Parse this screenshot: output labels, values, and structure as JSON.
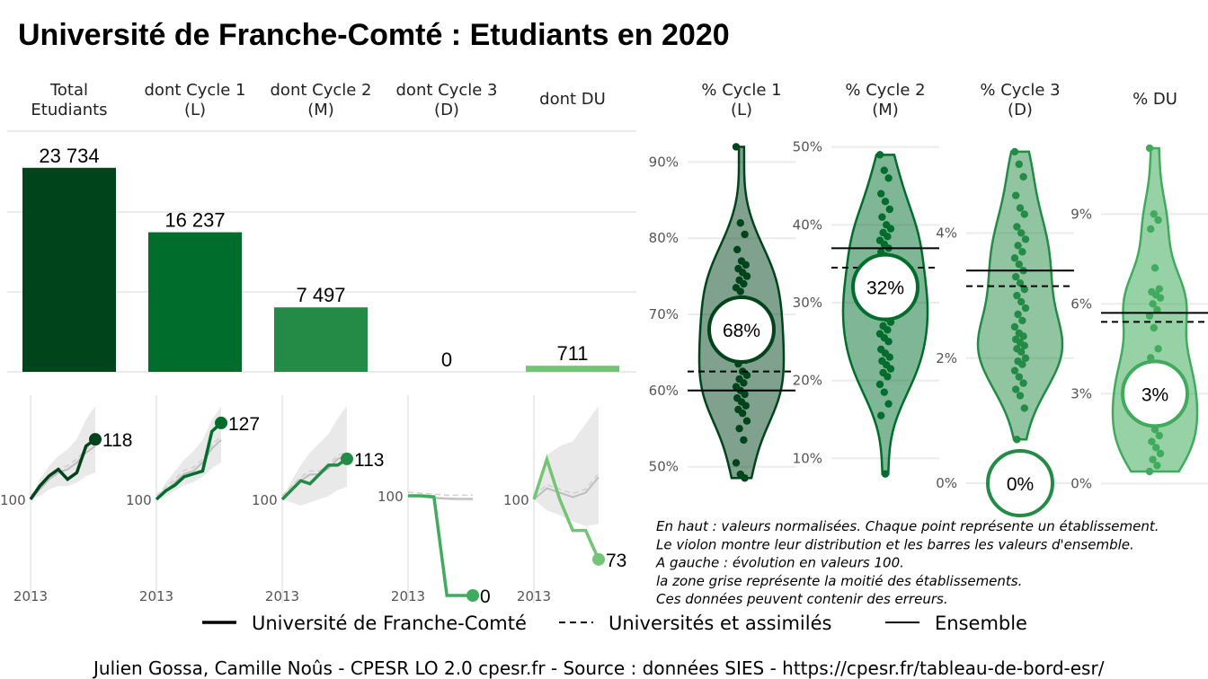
{
  "title": "Université de Franche-Comté  :  Etudiants en 2020",
  "chart_data": [
    {
      "type": "bar",
      "categories": [
        "Total\nEtudiants",
        "dont Cycle 1\n(L)",
        "dont Cycle 2\n(M)",
        "dont Cycle 3\n(D)",
        "dont DU"
      ],
      "values": [
        23734,
        16237,
        7497,
        0,
        711
      ],
      "value_labels": [
        "23 734",
        "16 237",
        "7 497",
        "0",
        "711"
      ],
      "colors": [
        "#00441b",
        "#006d2c",
        "#238b45",
        "#41ab5d",
        "#74c476"
      ],
      "ylim": [
        0,
        28000
      ]
    },
    {
      "type": "line",
      "start_label": "2013",
      "baseline_label": "100",
      "panels": [
        {
          "name": "Total Etudiants",
          "color": "#00441b",
          "end_label": "118",
          "university": [
            100,
            104,
            107,
            109,
            106,
            108,
            116,
            118
          ],
          "universities_avg": [
            100,
            103,
            106,
            108,
            109,
            111,
            114,
            116
          ],
          "band_low": [
            100,
            101,
            103,
            104,
            104,
            105,
            107,
            108
          ],
          "band_high": [
            100,
            106,
            110,
            113,
            115,
            118,
            124,
            128
          ]
        },
        {
          "name": "Cycle 1",
          "color": "#006d2c",
          "end_label": "127",
          "university": [
            100,
            103,
            105,
            108,
            109,
            110,
            124,
            127
          ],
          "universities_avg": [
            100,
            103,
            106,
            109,
            110,
            113,
            118,
            121
          ],
          "band_low": [
            100,
            101,
            103,
            105,
            106,
            108,
            111,
            113
          ],
          "band_high": [
            100,
            106,
            110,
            114,
            117,
            121,
            128,
            133
          ]
        },
        {
          "name": "Cycle 2",
          "color": "#238b45",
          "end_label": "113",
          "university": [
            100,
            103,
            106,
            105,
            108,
            111,
            111,
            113
          ],
          "universities_avg": [
            100,
            103,
            106,
            108,
            108,
            110,
            113,
            114
          ],
          "band_low": [
            100,
            99,
            98,
            99,
            100,
            101,
            103,
            104
          ],
          "band_high": [
            100,
            106,
            111,
            115,
            118,
            121,
            126,
            130
          ]
        },
        {
          "name": "Cycle 3",
          "color": "#41ab5d",
          "end_label": "0",
          "university": [
            100,
            100,
            99,
            0,
            0,
            0
          ],
          "universities_avg": [
            100,
            99,
            98,
            97,
            97,
            97
          ],
          "band_low": [
            100,
            98,
            97,
            96,
            95,
            95
          ],
          "band_high": [
            100,
            100,
            99,
            99,
            98,
            98
          ]
        },
        {
          "name": "DU",
          "color": "#74c476",
          "end_label": "73",
          "university": [
            100,
            118,
            100,
            86,
            86,
            73
          ],
          "universities_avg": [
            100,
            105,
            103,
            101,
            103,
            110
          ],
          "band_low": [
            100,
            95,
            93,
            90,
            88,
            89
          ],
          "band_high": [
            100,
            120,
            124,
            126,
            134,
            142
          ]
        }
      ]
    },
    {
      "type": "violin",
      "panels": [
        {
          "header": "% Cycle 1\n(L)",
          "value_label": "68%",
          "ylim": [
            47,
            93
          ],
          "ticks": [
            50,
            60,
            70,
            80,
            90
          ],
          "university_line": 60,
          "universities_line": 62.5,
          "value": 68,
          "fill": "#00441b",
          "fill_opacity": 0.5,
          "stroke": "#00441b",
          "points": [
            92,
            82,
            80.5,
            78.5,
            77,
            76.5,
            76,
            75.5,
            75,
            74.5,
            74,
            73.5,
            73,
            72,
            71,
            70.5,
            70,
            69.5,
            69,
            68.5,
            68,
            67.5,
            66.5,
            66,
            65.5,
            65,
            64.5,
            64,
            63.5,
            62.5,
            62,
            61.5,
            61,
            60.5,
            60,
            59.5,
            59,
            58.5,
            58,
            57.5,
            57,
            56,
            55,
            53.5,
            50.5,
            49,
            48.5
          ]
        },
        {
          "header": "% Cycle 2\n(M)",
          "value_label": "32%",
          "ylim": [
            6,
            51
          ],
          "ticks": [
            10,
            20,
            30,
            40,
            50
          ],
          "university_line": 37,
          "universities_line": 34.5,
          "value": 32,
          "fill": "#006d2c",
          "fill_opacity": 0.5,
          "stroke": "#006d2c",
          "points": [
            49,
            47,
            46,
            44,
            43,
            42,
            41,
            40,
            39.5,
            39,
            38.5,
            38,
            37.5,
            37,
            36.5,
            36,
            35,
            34,
            33.5,
            33,
            32.5,
            32,
            31.5,
            31,
            30.5,
            30,
            29.5,
            29,
            28.5,
            28,
            27.5,
            27,
            26.5,
            26,
            25.5,
            25,
            24,
            23.5,
            23,
            22.5,
            22,
            21.5,
            21,
            20.5,
            19.5,
            18.5,
            17,
            15.5,
            8
          ]
        },
        {
          "header": "% Cycle 3\n(D)",
          "value_label": "0%",
          "ylim": [
            -0.1,
            5.5
          ],
          "ticks": [
            0,
            2,
            4
          ],
          "tick_labels": [
            "0%",
            "2%",
            "4%"
          ],
          "university_line": 3.4,
          "universities_line": 3.15,
          "value": 0,
          "fill": "#238b45",
          "fill_opacity": 0.5,
          "stroke": "#238b45",
          "points": [
            5.3,
            5.1,
            4.9,
            4.6,
            4.4,
            4.3,
            4.1,
            4.0,
            3.9,
            3.8,
            3.7,
            3.6,
            3.5,
            3.4,
            3.3,
            3.2,
            3.1,
            3.0,
            2.9,
            2.8,
            2.7,
            2.6,
            2.5,
            2.4,
            2.35,
            2.3,
            2.25,
            2.2,
            2.15,
            2.1,
            2.0,
            1.95,
            1.9,
            1.8,
            1.7,
            1.6,
            1.5,
            1.4,
            1.2,
            0.7
          ]
        },
        {
          "header": "% DU",
          "value_label": "3%",
          "ylim": [
            -0.2,
            11.5
          ],
          "ticks": [
            0,
            3,
            6,
            9
          ],
          "tick_labels": [
            "0%",
            "3%",
            "6%",
            "9%"
          ],
          "university_line": 5.7,
          "universities_line": 5.4,
          "value": 3,
          "fill": "#41ab5d",
          "fill_opacity": 0.55,
          "stroke": "#41ab5d",
          "points": [
            11.2,
            9.0,
            8.8,
            8.5,
            7.2,
            6.5,
            6.4,
            6.3,
            6.2,
            6.0,
            5.8,
            5.6,
            5.2,
            4.5,
            4.2,
            4.0,
            3.9,
            3.7,
            3.5,
            3.2,
            3.0,
            2.8,
            2.6,
            2.4,
            2.2,
            2.0,
            1.8,
            1.6,
            1.4,
            1.2,
            1.0,
            0.8,
            0.6,
            0.4
          ]
        }
      ]
    }
  ],
  "notes": [
    "En haut : valeurs normalisées. Chaque point représente un établissement.",
    "Le violon montre leur distribution et les barres les valeurs d'ensemble.",
    "A gauche : évolution en valeurs 100.",
    "la zone grise représente la moitié des établissements.",
    "Ces données peuvent contenir des erreurs."
  ],
  "legend": [
    {
      "label": "Université de Franche-Comté",
      "style": "solid-thick"
    },
    {
      "label": "Universités et assimilés",
      "style": "dashed"
    },
    {
      "label": "Ensemble",
      "style": "solid-thin"
    }
  ],
  "footer": "Julien Gossa, Camille Noûs - CPESR LO 2.0 cpesr.fr - Source : données SIES - https://cpesr.fr/tableau-de-bord-esr/"
}
